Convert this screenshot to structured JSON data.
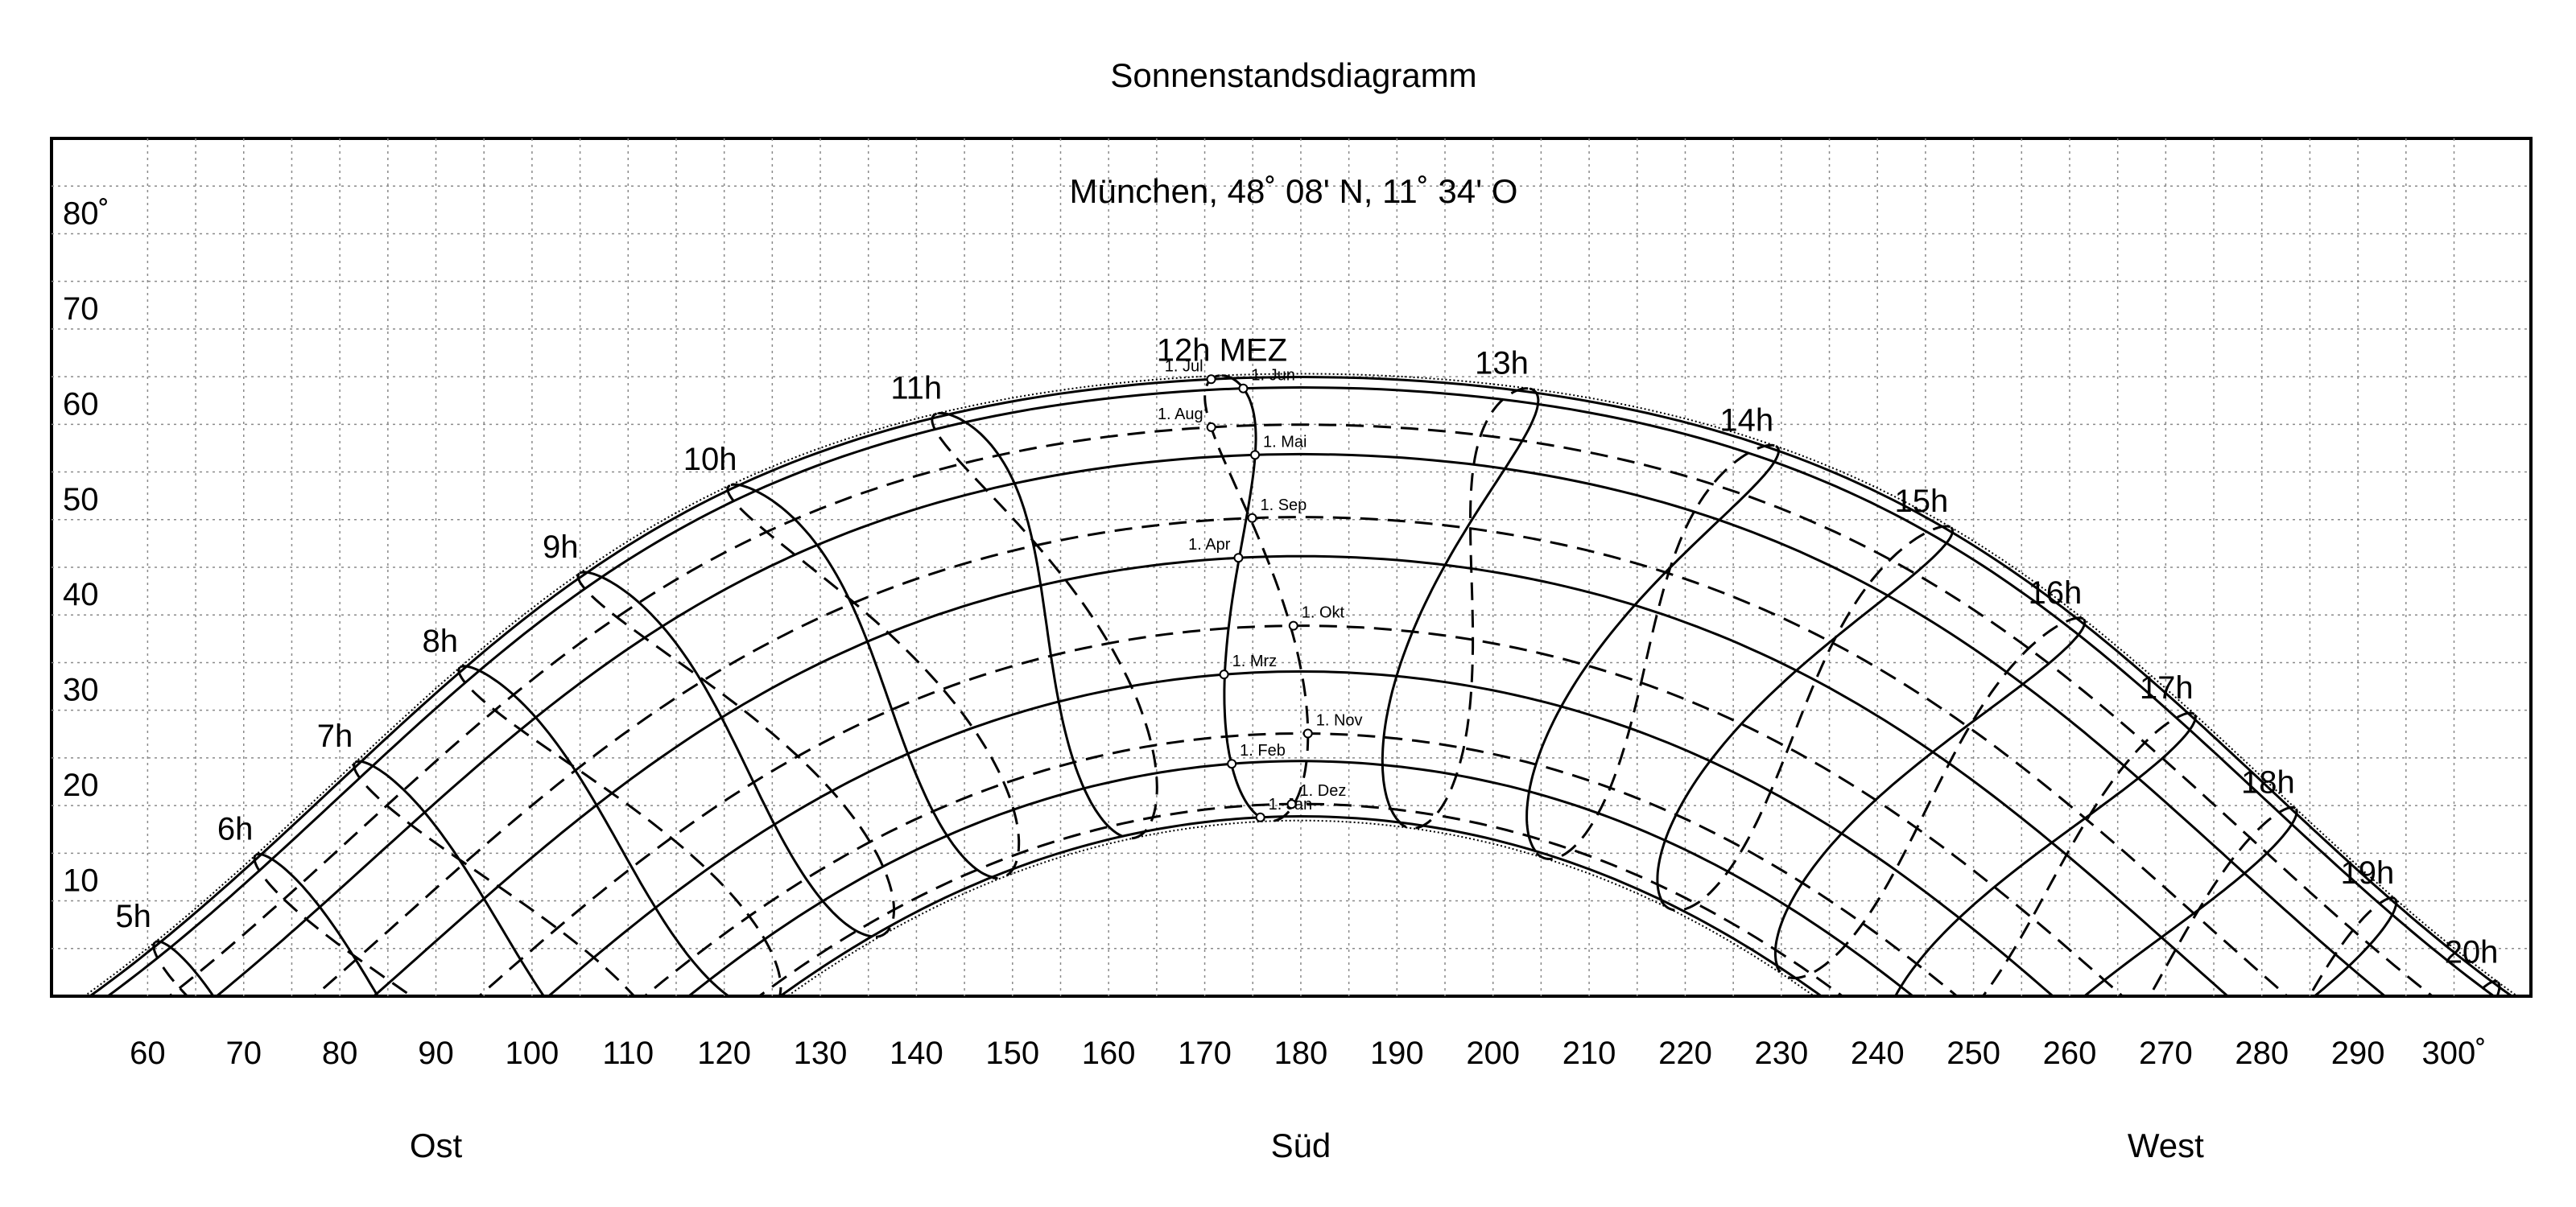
{
  "chart_data": {
    "type": "line",
    "title": "Sonnenstandsdiagramm",
    "subtitle": "München, 48˚ 08' N, 11˚ 34' O",
    "latitude_deg": 48.133,
    "longitude_deg": 11.567,
    "timezone": "MEZ",
    "x_axis": {
      "range": [
        50,
        308
      ],
      "ticks": [
        60,
        70,
        80,
        90,
        100,
        110,
        120,
        130,
        140,
        150,
        160,
        170,
        180,
        190,
        200,
        210,
        220,
        230,
        240,
        250,
        260,
        270,
        280,
        290,
        300
      ],
      "tick_labels": [
        "60",
        "70",
        "80",
        "90",
        "100",
        "110",
        "120",
        "130",
        "140",
        "150",
        "160",
        "170",
        "180",
        "190",
        "200",
        "210",
        "220",
        "230",
        "240",
        "250",
        "260",
        "270",
        "280",
        "290",
        "300˚"
      ],
      "direction_labels": [
        {
          "label": "Ost",
          "azimuth": 90
        },
        {
          "label": "Süd",
          "azimuth": 180
        },
        {
          "label": "West",
          "azimuth": 270
        }
      ]
    },
    "y_axis": {
      "range": [
        0,
        90
      ],
      "ticks": [
        10,
        20,
        30,
        40,
        50,
        60,
        70,
        80
      ],
      "tick_labels": [
        "10",
        "20",
        "30",
        "40",
        "50",
        "60",
        "70",
        "80˚"
      ]
    },
    "grid": true,
    "date_curves": [
      {
        "label": "1. Jan",
        "declination": -23.0,
        "style": "solid"
      },
      {
        "label": "1. Feb",
        "declination": -17.2,
        "style": "solid"
      },
      {
        "label": "1. Mrz",
        "declination": -7.8,
        "style": "solid"
      },
      {
        "label": "1. Apr",
        "declination": 4.3,
        "style": "solid"
      },
      {
        "label": "1. Mai",
        "declination": 15.0,
        "style": "solid"
      },
      {
        "label": "1. Jun",
        "declination": 22.0,
        "style": "solid"
      },
      {
        "label": "1. Jul",
        "declination": 23.1,
        "style": "solid"
      },
      {
        "label": "1. Aug",
        "declination": 18.1,
        "style": "dashed"
      },
      {
        "label": "1. Sep",
        "declination": 8.4,
        "style": "dashed"
      },
      {
        "label": "1. Okt",
        "declination": -3.0,
        "style": "dashed"
      },
      {
        "label": "1. Nov",
        "declination": -14.3,
        "style": "dashed"
      },
      {
        "label": "1. Dez",
        "declination": -21.7,
        "style": "dashed"
      }
    ],
    "hour_labels": [
      "5h",
      "6h",
      "7h",
      "8h",
      "9h",
      "10h",
      "11h",
      "12h MEZ",
      "13h",
      "14h",
      "15h",
      "16h",
      "17h",
      "18h",
      "19h",
      "20h"
    ],
    "summer_solstice_declination": 23.44,
    "winter_solstice_declination": -23.44
  }
}
